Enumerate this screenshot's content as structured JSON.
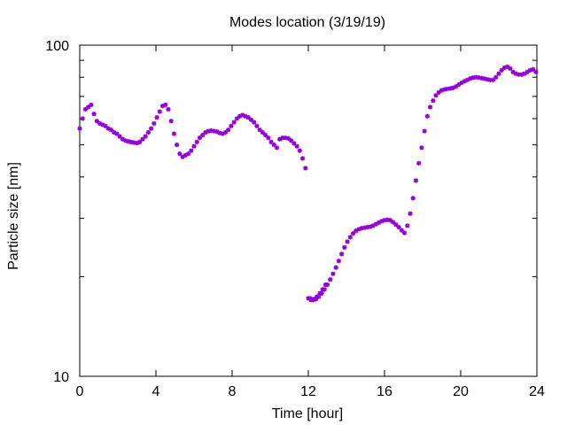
{
  "chart_data": {
    "type": "scatter",
    "title": "Modes location (3/19/19)",
    "xlabel": "Time [hour]",
    "ylabel": "Particle size [nm]",
    "xlim": [
      0,
      24
    ],
    "ylim": [
      10,
      100
    ],
    "y_scale": "log",
    "grid": false,
    "legend": "none",
    "xticks": [
      0,
      4,
      8,
      12,
      16,
      20,
      24
    ],
    "xtick_labels": [
      "0",
      "4",
      "8",
      "12",
      "16",
      "20",
      "24"
    ],
    "yticks": [
      10,
      100
    ],
    "ytick_labels": [
      "10",
      "100"
    ],
    "marker_color": "#9400d3",
    "series": [
      {
        "x": [
          0.0,
          0.15,
          0.3,
          0.45,
          0.6,
          0.75,
          0.9,
          1.05,
          1.2,
          1.35,
          1.5,
          1.65,
          1.8,
          1.95,
          2.1,
          2.25,
          2.4,
          2.55,
          2.7,
          2.85,
          3.0,
          3.15,
          3.3,
          3.45,
          3.6,
          3.75,
          3.9,
          4.05,
          4.2,
          4.35,
          4.5,
          4.65,
          4.8,
          4.95,
          5.1,
          5.25,
          5.4,
          5.55,
          5.7,
          5.85,
          6.0,
          6.15,
          6.3,
          6.45,
          6.6,
          6.75,
          6.9,
          7.05,
          7.2,
          7.35,
          7.5,
          7.65,
          7.8,
          7.95,
          8.1,
          8.25,
          8.4,
          8.55,
          8.7,
          8.85,
          9.0,
          9.15,
          9.3,
          9.45,
          9.6,
          9.75,
          9.9,
          10.05,
          10.2,
          10.35,
          10.5,
          10.65,
          10.8,
          10.95,
          11.1,
          11.25,
          11.4,
          11.55,
          11.7,
          11.85,
          12.0,
          12.15,
          12.3,
          12.45,
          12.6,
          12.75,
          12.9
        ],
        "y": [
          56,
          60,
          64,
          65,
          66,
          62,
          59,
          58,
          57.5,
          57,
          56,
          55.5,
          54.5,
          54,
          53,
          52,
          51.5,
          51.2,
          51,
          50.8,
          50.6,
          51,
          52,
          53,
          54.5,
          56,
          58,
          60.5,
          63,
          65.5,
          66,
          64,
          59,
          54,
          50,
          47,
          46,
          46.5,
          47,
          48,
          49.5,
          51,
          52.5,
          53.5,
          54.5,
          55,
          55.2,
          55,
          54.8,
          54.3,
          54,
          54.5,
          55.5,
          57,
          58.5,
          60,
          61,
          61.5,
          61,
          60.5,
          59.5,
          58.5,
          57,
          55.5,
          54.5,
          53.5,
          52.5,
          51,
          50,
          49,
          52,
          52.5,
          52.5,
          52.3,
          51.5,
          50.5,
          49.5,
          48,
          45.5,
          42.5,
          17.2,
          17.0,
          17.1,
          17.4,
          17.8,
          18.3,
          18.9
        ]
      },
      {
        "x": [
          12.1,
          12.25,
          12.4,
          12.55,
          12.7,
          12.85,
          13.0,
          13.15,
          13.3,
          13.45,
          13.6,
          13.75,
          13.9,
          14.05,
          14.2,
          14.35,
          14.5,
          14.65,
          14.8,
          14.95,
          15.1,
          15.25,
          15.4,
          15.55,
          15.7,
          15.85,
          16.0,
          16.15,
          16.3,
          16.45,
          16.6,
          16.75,
          16.9,
          17.05,
          17.2,
          17.35,
          17.5,
          17.65,
          17.8,
          17.95,
          18.1,
          18.25,
          18.4,
          18.55,
          18.7,
          18.85,
          19.0,
          19.15,
          19.3,
          19.45,
          19.6,
          19.75,
          19.9,
          20.05,
          20.2,
          20.35,
          20.5,
          20.65,
          20.8,
          20.95,
          21.1,
          21.25,
          21.4,
          21.55,
          21.7,
          21.85,
          22.0,
          22.15,
          22.3,
          22.45,
          22.6,
          22.75,
          22.9,
          23.05,
          23.2,
          23.35,
          23.5,
          23.65,
          23.8,
          23.95
        ],
        "y": [
          17.2,
          17.0,
          17.1,
          17.4,
          17.8,
          18.3,
          18.9,
          19.6,
          20.4,
          21.3,
          22.3,
          23.4,
          24.5,
          25.5,
          26.3,
          27.0,
          27.5,
          27.8,
          28.0,
          28.1,
          28.2,
          28.3,
          28.5,
          28.8,
          29.1,
          29.4,
          29.6,
          29.7,
          29.6,
          29.2,
          28.7,
          28.2,
          27.6,
          27.1,
          28.5,
          31,
          34.5,
          39,
          44,
          49,
          55,
          61,
          65,
          68,
          70.5,
          72,
          73,
          73.5,
          73.8,
          74,
          74.3,
          75,
          76,
          77,
          77.8,
          78.5,
          79.3,
          79.8,
          80,
          79.8,
          79.5,
          79.2,
          78.8,
          78.5,
          78.5,
          80,
          82,
          84,
          85.5,
          86,
          85,
          83,
          82,
          81.5,
          81.5,
          82,
          83,
          84,
          84.5,
          83
        ]
      }
    ]
  }
}
